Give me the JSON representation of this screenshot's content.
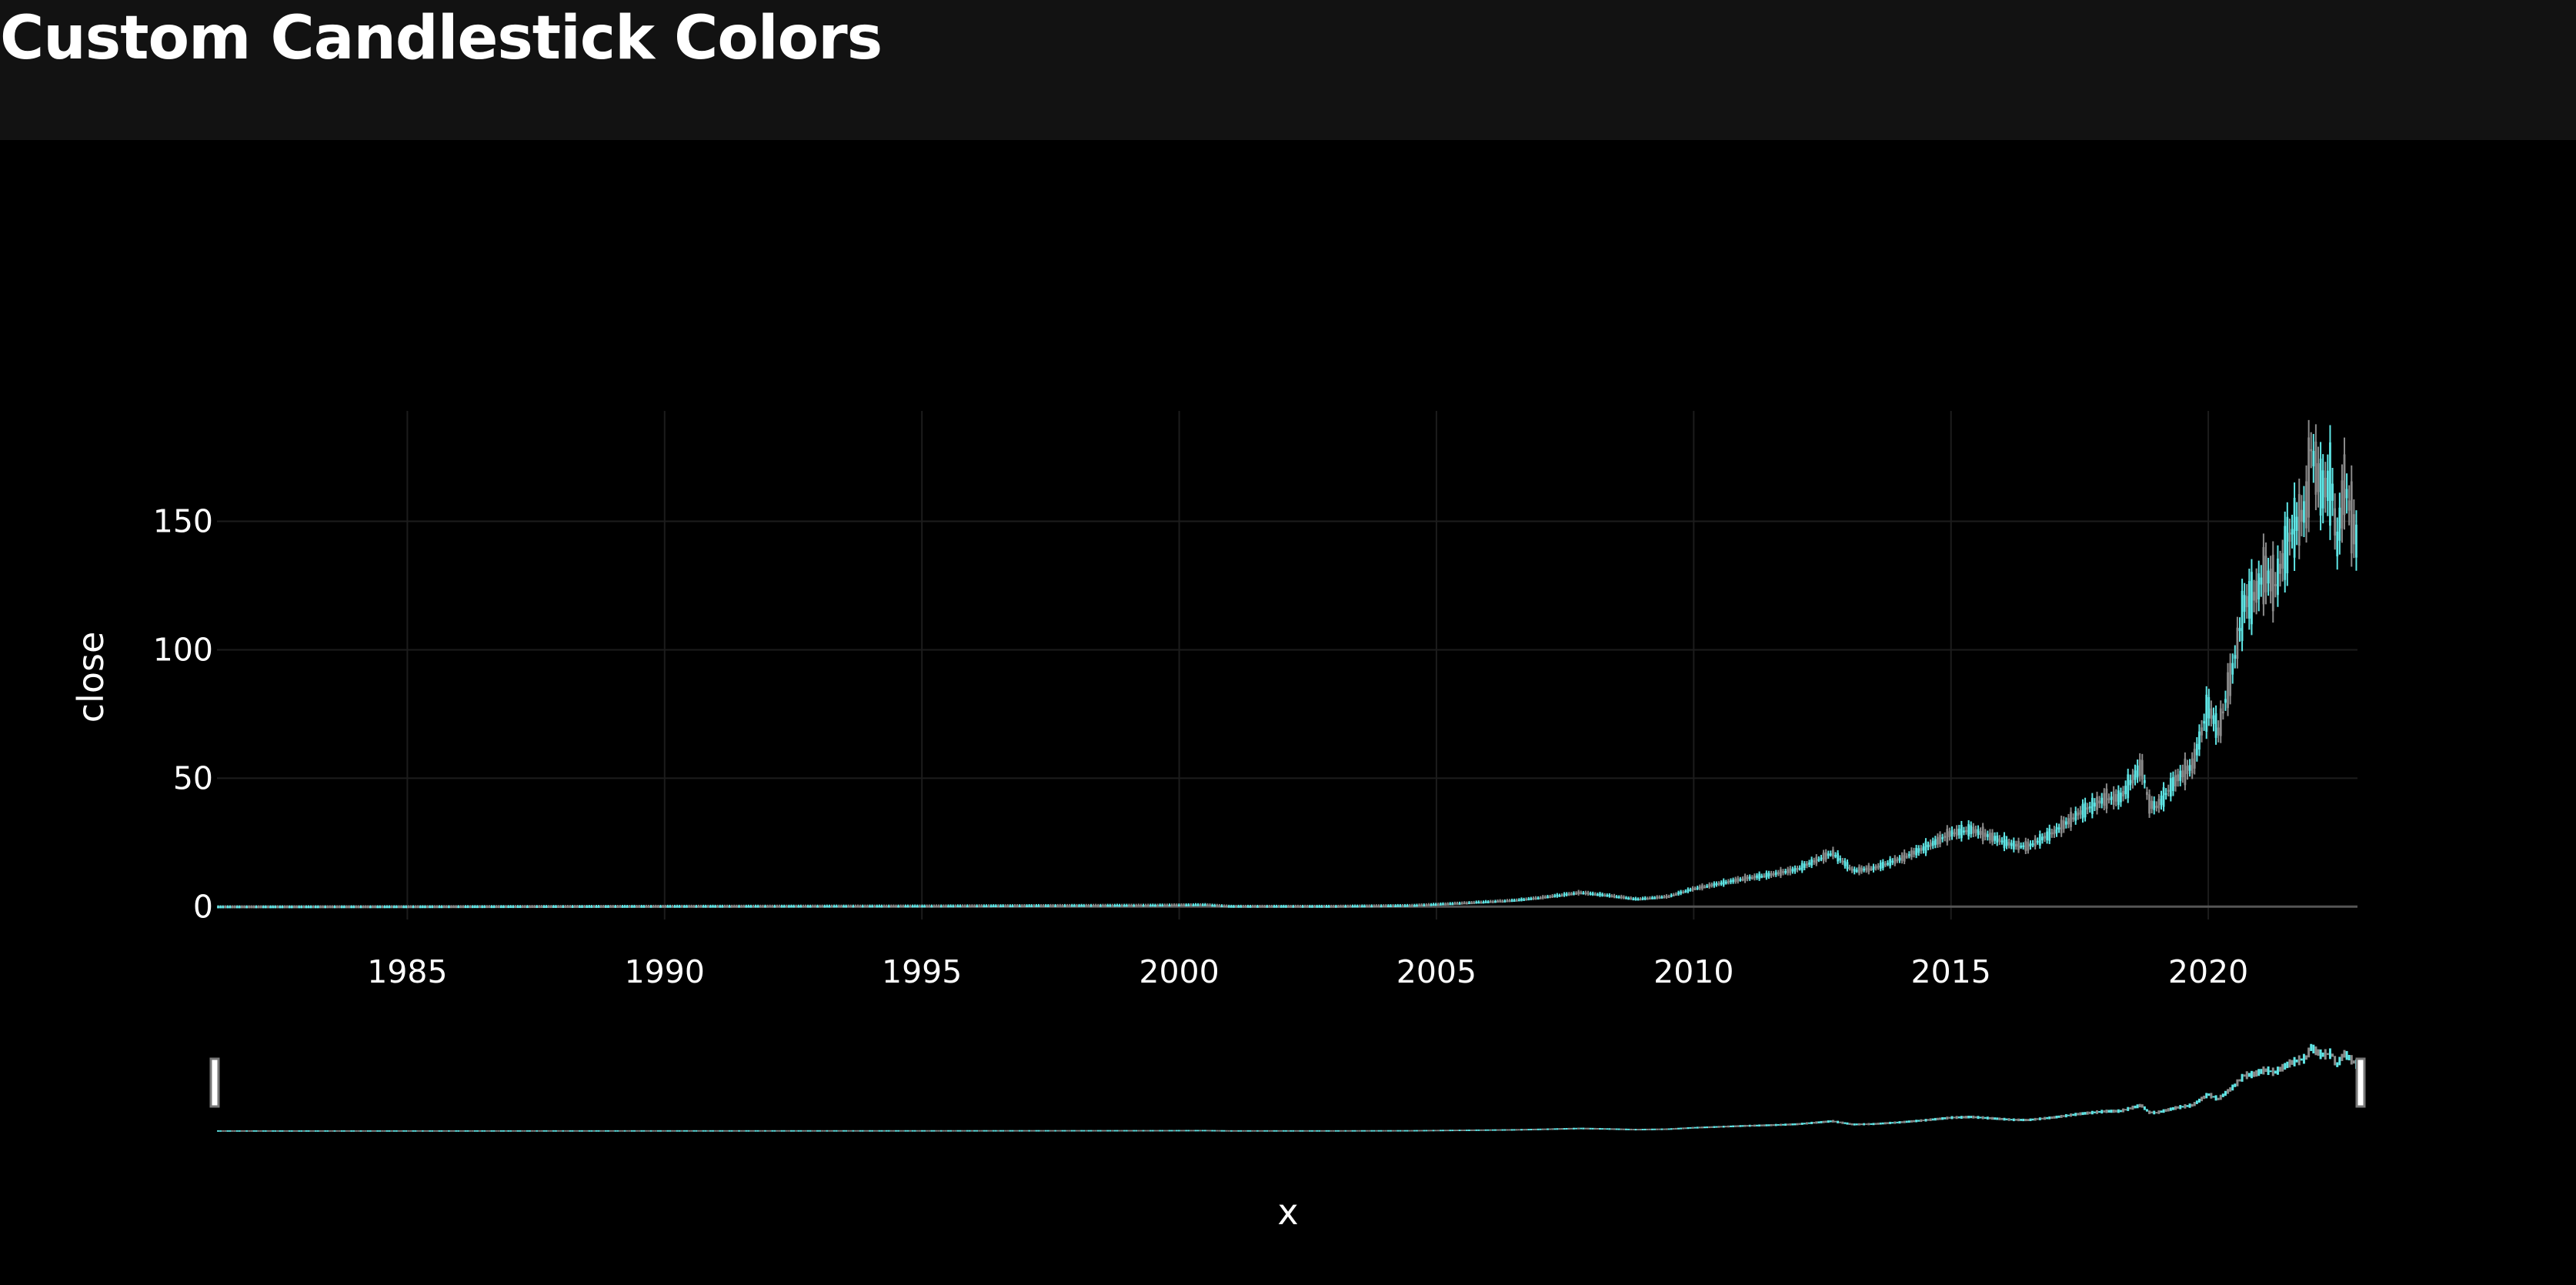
{
  "page": {
    "title": "Custom Candlestick Colors"
  },
  "colors": {
    "header_bg": "#121212",
    "plot_bg": "#000000",
    "increasing": "#5fe6e6",
    "decreasing": "#8a8a8a",
    "grid": "#1c1c1c",
    "zeroline": "#555555",
    "text": "#ffffff"
  },
  "chart_data": {
    "type": "candlestick",
    "title": "",
    "xlabel": "x",
    "ylabel": "close",
    "xlim": [
      1981.3,
      2022.9
    ],
    "ylim": [
      -5,
      193
    ],
    "x_ticks": [
      1985,
      1990,
      1995,
      2000,
      2005,
      2010,
      2015,
      2020
    ],
    "y_ticks": [
      0,
      50,
      100,
      150
    ],
    "grid": true,
    "legend": "none",
    "rangeslider": true,
    "series": [
      {
        "x": [
          1981.0,
          1985.0,
          1990.0,
          1995.0,
          1999.5,
          2000.5,
          2001.0,
          2003.0,
          2004.5,
          2005.5,
          2006.5,
          2007.0,
          2007.8,
          2008.3,
          2008.9,
          2009.5,
          2010.0,
          2010.5,
          2011.0,
          2011.5,
          2012.0,
          2012.7,
          2013.1,
          2013.5,
          2014.0,
          2014.5,
          2015.0,
          2015.4,
          2015.8,
          2016.2,
          2016.5,
          2017.0,
          2017.5,
          2018.0,
          2018.3,
          2018.7,
          2018.85,
          2019.0,
          2019.4,
          2019.7,
          2020.0,
          2020.2,
          2020.5,
          2020.7,
          2020.9,
          2021.1,
          2021.3,
          2021.6,
          2021.9,
          2022.0,
          2022.2,
          2022.4,
          2022.5,
          2022.65,
          2022.8,
          2022.9
        ],
        "close": [
          0.1,
          0.15,
          0.3,
          0.4,
          0.7,
          0.9,
          0.3,
          0.3,
          0.6,
          1.5,
          2.5,
          3.5,
          5.5,
          4.5,
          3.0,
          4.0,
          7.0,
          9.0,
          11.0,
          12.5,
          14.5,
          21.0,
          14.0,
          15.0,
          18.5,
          23.0,
          28.5,
          30.0,
          27.0,
          24.0,
          23.5,
          29.0,
          36.5,
          42.0,
          42.5,
          55.0,
          40.0,
          39.0,
          50.0,
          55.0,
          78.0,
          68.0,
          95.0,
          118.0,
          121.0,
          130.0,
          125.0,
          145.0,
          155.0,
          178.0,
          162.0,
          165.0,
          140.0,
          165.0,
          150.0,
          140.0
        ]
      }
    ]
  }
}
